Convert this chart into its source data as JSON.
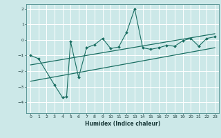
{
  "xlabel": "Humidex (Indice chaleur)",
  "ylabel": "",
  "bg_color": "#cce8e8",
  "grid_color": "#ffffff",
  "line_color": "#1a6e62",
  "xlim": [
    -0.5,
    23.5
  ],
  "ylim": [
    -4.7,
    2.3
  ],
  "yticks": [
    -4,
    -3,
    -2,
    -1,
    0,
    1,
    2
  ],
  "xticks": [
    0,
    1,
    2,
    3,
    4,
    5,
    6,
    7,
    8,
    9,
    10,
    11,
    12,
    13,
    14,
    15,
    16,
    17,
    18,
    19,
    20,
    21,
    22,
    23
  ],
  "data_x": [
    0,
    1,
    3,
    4,
    4.5,
    5,
    6,
    7,
    8,
    9,
    10,
    11,
    12,
    13,
    14,
    15,
    16,
    17,
    18,
    19,
    20,
    21,
    22,
    23
  ],
  "data_y": [
    -1.0,
    -1.2,
    -2.9,
    -3.7,
    -3.65,
    -0.1,
    -2.4,
    -0.5,
    -0.3,
    0.1,
    -0.55,
    -0.45,
    0.5,
    2.0,
    -0.5,
    -0.6,
    -0.5,
    -0.35,
    -0.4,
    -0.05,
    0.1,
    -0.4,
    0.1,
    0.2
  ],
  "line1_x": [
    0,
    23
  ],
  "line1_y": [
    -1.6,
    0.4
  ],
  "line2_x": [
    0,
    23
  ],
  "line2_y": [
    -2.65,
    -0.5
  ]
}
